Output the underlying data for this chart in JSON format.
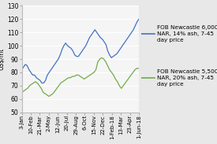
{
  "title": "",
  "ylabel": "US$/mt",
  "ylim": [
    50,
    130
  ],
  "yticks": [
    50,
    60,
    70,
    80,
    90,
    100,
    110,
    120,
    130
  ],
  "x_labels": [
    "3-Jan",
    "10-Feb",
    "21-Mar",
    "2-May",
    "12-Jun",
    "20-Jul",
    "29-Aug",
    "6-Oct",
    "15-Nov",
    "22-Dec",
    "1-Feb-18",
    "13-Mar",
    "23-Apr",
    "1-Jun-18"
  ],
  "line1_color": "#4472C4",
  "line2_color": "#70AD47",
  "legend1": "FOB Newcastle 6,000\nNAR, 14% ash, 7-45\nday price",
  "legend2": "FOB Newcastle 5,500\nNAR, 20% ash, 7-45\nday price",
  "series1": [
    82,
    84,
    86,
    85,
    82,
    80,
    78,
    78,
    76,
    75,
    74,
    72,
    72,
    74,
    78,
    80,
    82,
    84,
    86,
    88,
    90,
    93,
    97,
    100,
    102,
    100,
    99,
    98,
    96,
    93,
    92,
    92,
    94,
    96,
    98,
    100,
    103,
    106,
    108,
    110,
    112,
    110,
    108,
    106,
    105,
    103,
    101,
    96,
    93,
    91,
    92,
    93,
    94,
    96,
    98,
    100,
    102,
    104,
    106,
    108,
    110,
    112,
    115,
    118,
    120
  ],
  "series2": [
    65,
    66,
    67,
    68,
    70,
    71,
    72,
    73,
    72,
    70,
    68,
    65,
    64,
    63,
    62,
    63,
    64,
    66,
    68,
    70,
    72,
    73,
    74,
    75,
    76,
    76,
    77,
    77,
    78,
    78,
    77,
    76,
    75,
    76,
    77,
    78,
    79,
    80,
    82,
    88,
    90,
    91,
    90,
    88,
    85,
    82,
    80,
    78,
    75,
    73,
    70,
    68,
    70,
    72,
    74,
    76,
    78,
    80,
    82,
    83,
    83
  ],
  "background_color": "#e8e8e8",
  "plot_bg": "#f5f5f5",
  "grid_color": "#ffffff",
  "xlabel_fontsize": 5.0,
  "ylabel_fontsize": 5.5,
  "legend_fontsize": 5.2,
  "tick_fontsize": 5.5,
  "linewidth": 0.9
}
